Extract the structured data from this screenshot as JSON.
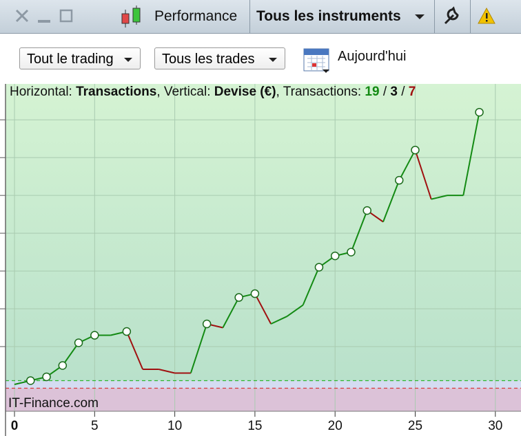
{
  "window": {
    "title": "Performance",
    "instruments": "Tous les instruments"
  },
  "filters": {
    "trading": "Tout le trading",
    "trades": "Tous les trades",
    "period": "Aujourd'hui"
  },
  "chart_data": {
    "type": "line",
    "header": {
      "h_label": "Horizontal:",
      "h_value": "Transactions",
      "v_label": ", Vertical:",
      "v_value": "Devise (€)",
      "t_label": ", Transactions:",
      "wins": 19,
      "neutral": 3,
      "losses": 7,
      "separator": "/"
    },
    "brand": "IT-Finance.com",
    "x": [
      0,
      1,
      2,
      3,
      4,
      5,
      6,
      7,
      8,
      9,
      10,
      11,
      12,
      13,
      14,
      15,
      16,
      17,
      18,
      19,
      20,
      21,
      22,
      23,
      24,
      25,
      26,
      27,
      28,
      29
    ],
    "values": [
      0,
      0.1,
      0.2,
      0.5,
      1.1,
      1.3,
      1.3,
      1.4,
      0.4,
      0.4,
      0.3,
      0.3,
      1.6,
      1.5,
      2.3,
      2.4,
      1.6,
      1.8,
      2.1,
      3.1,
      3.4,
      3.5,
      4.6,
      4.3,
      5.4,
      6.2,
      4.9,
      5.0,
      5.0,
      7.2
    ],
    "marker": [
      false,
      true,
      true,
      true,
      true,
      true,
      false,
      true,
      false,
      false,
      false,
      false,
      true,
      false,
      true,
      true,
      false,
      false,
      false,
      true,
      true,
      true,
      true,
      false,
      true,
      true,
      false,
      false,
      false,
      true
    ],
    "xlim": [
      -0.56,
      31.6
    ],
    "xticks": [
      0,
      5,
      10,
      15,
      20,
      25,
      30
    ],
    "ylim": [
      -0.71,
      7.95
    ],
    "ygrid": [
      1,
      2,
      3,
      4,
      5,
      6,
      7
    ],
    "up_color": "#138a13",
    "down_color": "#a01010",
    "upper_line": 0.1,
    "lower_line": -0.1
  }
}
